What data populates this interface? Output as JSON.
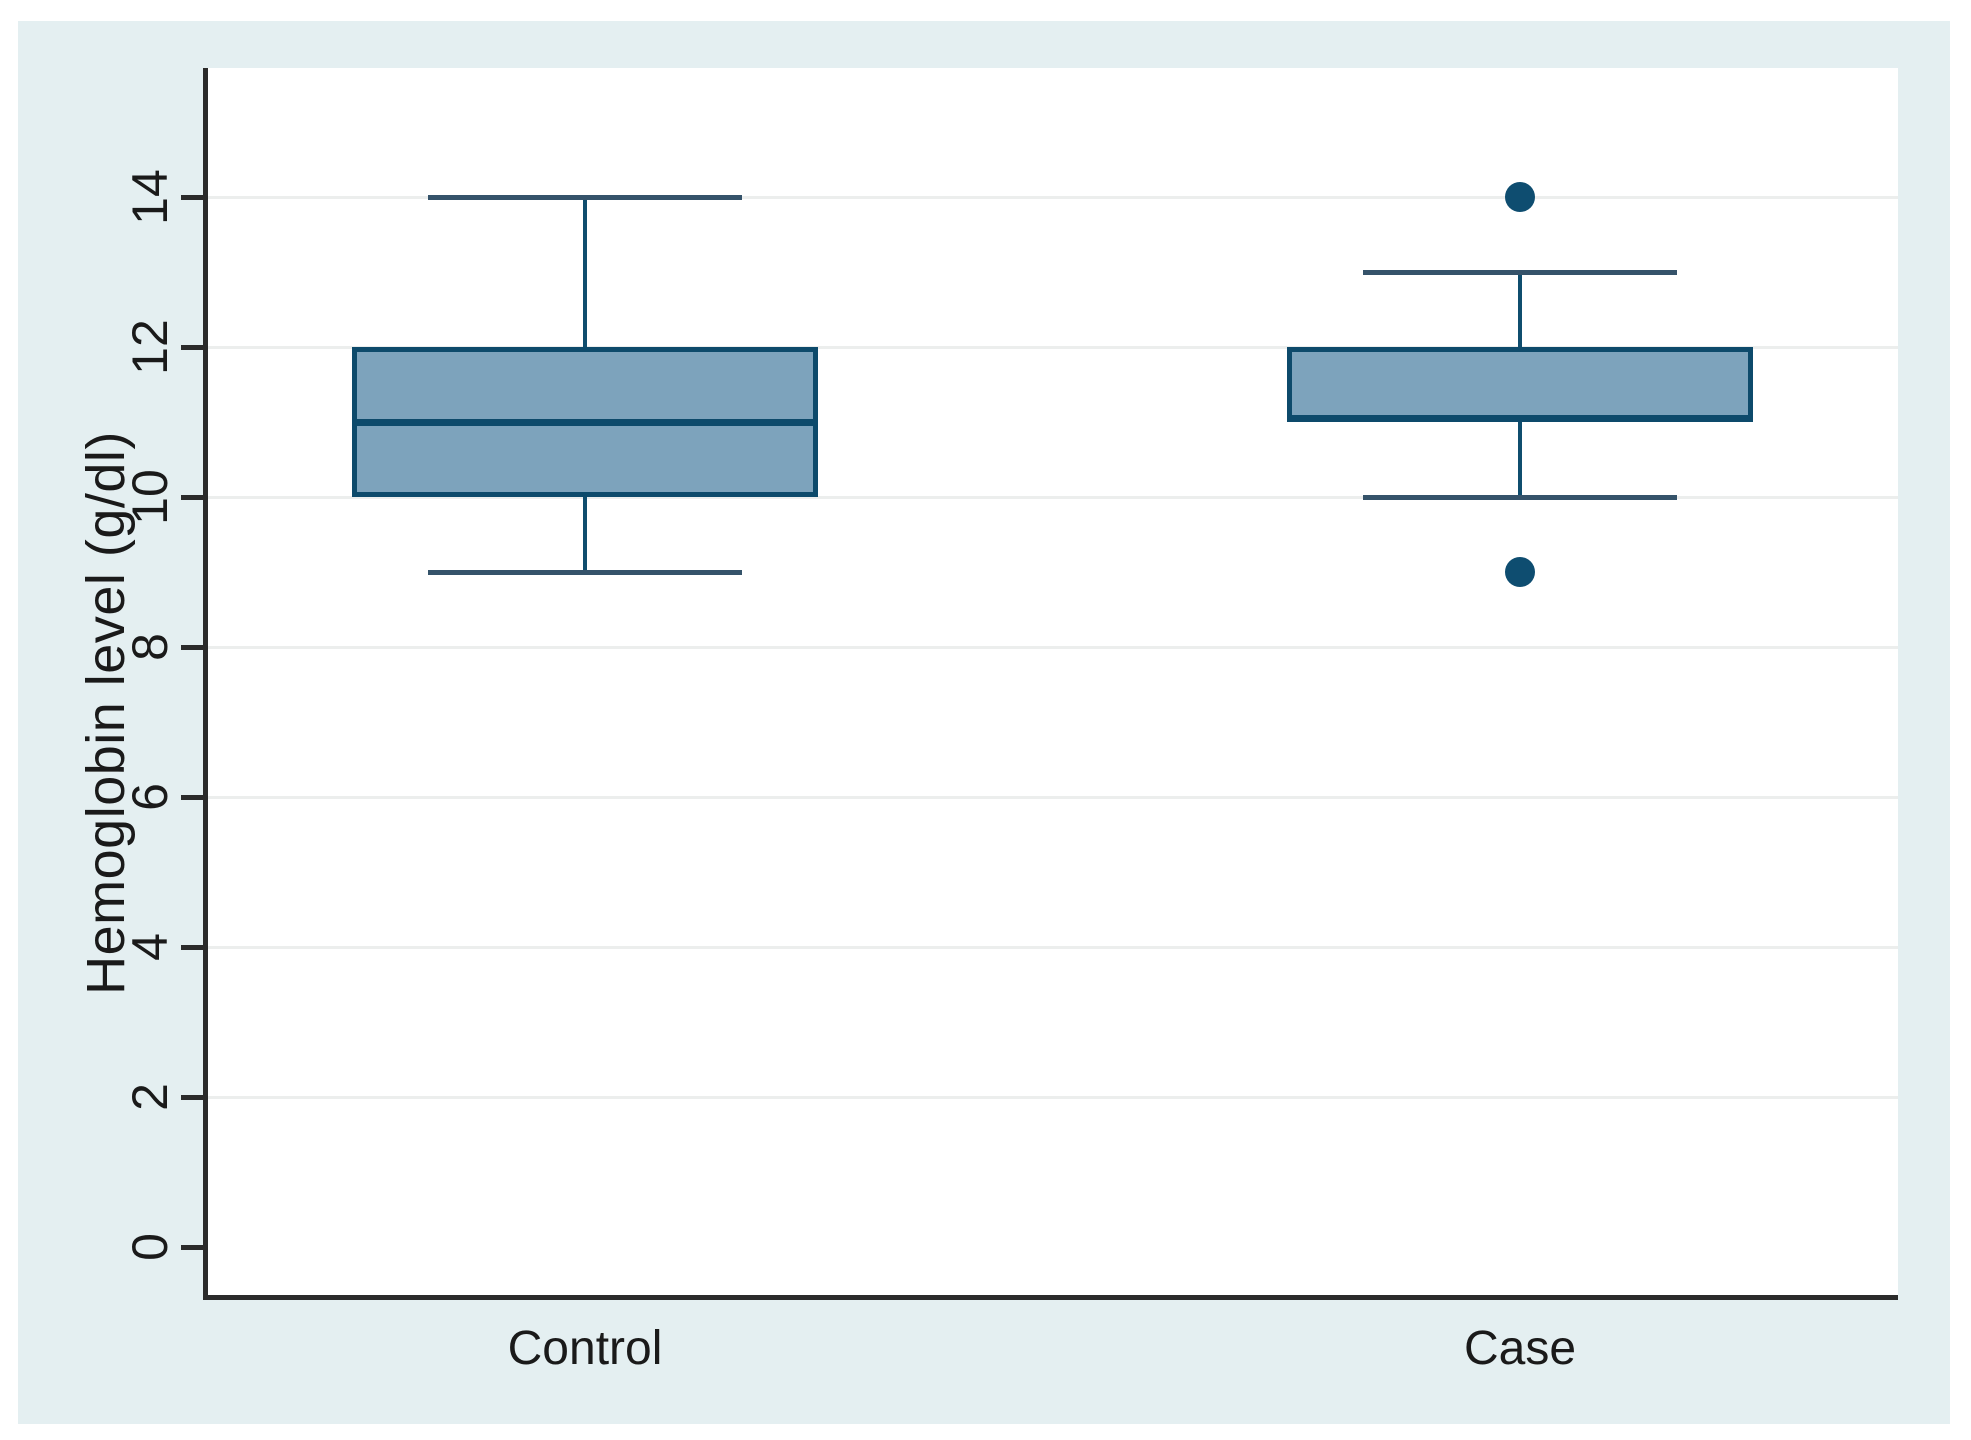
{
  "chart_data": {
    "type": "box",
    "title": "",
    "xlabel": "",
    "ylabel": "Hemoglobin level (g/dl)",
    "categories": [
      "Control",
      "Case"
    ],
    "yticks": [
      0,
      2,
      4,
      6,
      8,
      10,
      12,
      14
    ],
    "gridlines_at": [
      2,
      4,
      6,
      8,
      10,
      12,
      14
    ],
    "ylim": [
      -0.64,
      15.72
    ],
    "grid": "on",
    "legend": "none",
    "series": [
      {
        "name": "Control",
        "whisker_low": 9,
        "q1": 10,
        "median": 11,
        "q3": 12,
        "whisker_high": 14,
        "outliers": []
      },
      {
        "name": "Case",
        "whisker_low": 10,
        "q1": 11,
        "median": 11,
        "q3": 12,
        "whisker_high": 13,
        "outliers": [
          9,
          14
        ]
      }
    ],
    "colors": {
      "figure_background": "#e4eff1",
      "plot_background": "#ffffff",
      "gridline": "#eceeed",
      "axis": "#2b2b2b",
      "text": "#1a1a1a",
      "box_fill": "#7da3bc",
      "box_border": "#0d4a6b",
      "median": "#0d4a6b",
      "whisker": "#0f4d6e",
      "whisker_cap": "#35536a",
      "outlier": "#0e4d70"
    }
  }
}
